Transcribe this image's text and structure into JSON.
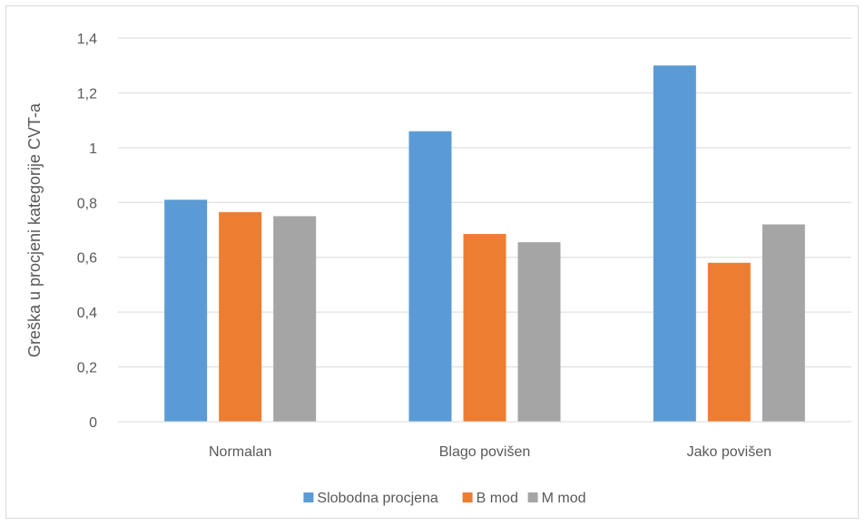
{
  "chart_data": {
    "type": "bar",
    "categories": [
      "Normalan",
      "Blago povišen",
      "Jako povišen"
    ],
    "series": [
      {
        "name": "Slobodna procjena",
        "color": "#5b9bd5",
        "values": [
          0.81,
          1.06,
          1.3
        ]
      },
      {
        "name": "B mod",
        "color": "#ed7d31",
        "values": [
          0.765,
          0.685,
          0.58
        ]
      },
      {
        "name": "M mod",
        "color": "#a5a5a5",
        "values": [
          0.75,
          0.655,
          0.72
        ]
      }
    ],
    "ylabel": "Greška u procjeni kategorije CVT-a",
    "xlabel": "",
    "ylim": [
      0,
      1.4
    ],
    "yticks": [
      "0",
      "0,2",
      "0,4",
      "0,6",
      "0,8",
      "1",
      "1,2",
      "1,4"
    ],
    "grid": true,
    "legend": "bottom"
  }
}
